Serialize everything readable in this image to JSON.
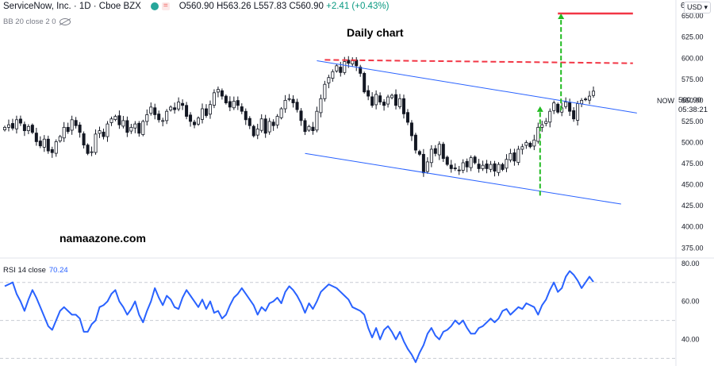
{
  "header": {
    "symbol": "ServiceNow, Inc. · 1D · Cboe BZX",
    "ohlc": "O560.90 H563.26 L557.83 C560.90",
    "change": "+2.41 (+0.43%)",
    "indicator": "BB 20 close 2 0"
  },
  "annotations": {
    "title": "Daily chart",
    "watermark": "namaazone.com"
  },
  "axis_controls": {
    "currency": "USD",
    "top_label": "6",
    "now_label": "NOW",
    "price_tag": "560.90",
    "countdown": "05:38:21"
  },
  "rsi": {
    "label": "RSI 14 close",
    "value": "70.24"
  },
  "colors": {
    "up": "#089981",
    "down": "#f23645",
    "candle": "#131722",
    "channel": "#2962ff",
    "resistance": "#f23645",
    "arrow": "#22bb22",
    "rsi_line": "#2962ff"
  },
  "chart_data": [
    {
      "type": "candlestick",
      "title": "Daily chart",
      "y_ticks": [
        375,
        400,
        425,
        450,
        475,
        500,
        525,
        550,
        575,
        600,
        625,
        650
      ],
      "ylim": [
        363,
        669
      ],
      "x_count": 150,
      "close": [
        518,
        521,
        517,
        527,
        523,
        514,
        519,
        512,
        501,
        496,
        504,
        490,
        488,
        501,
        507,
        518,
        513,
        527,
        520,
        512,
        497,
        487,
        489,
        510,
        514,
        507,
        522,
        528,
        531,
        521,
        526,
        512,
        518,
        522,
        511,
        525,
        533,
        542,
        533,
        527,
        526,
        537,
        542,
        539,
        548,
        544,
        531,
        525,
        521,
        529,
        540,
        532,
        545,
        559,
        563,
        555,
        547,
        542,
        549,
        544,
        537,
        527,
        520,
        508,
        516,
        528,
        511,
        525,
        520,
        531,
        540,
        550,
        552,
        547,
        539,
        526,
        513,
        519,
        514,
        537,
        552,
        569,
        577,
        584,
        591,
        583,
        596,
        594,
        597,
        591,
        582,
        560,
        555,
        544,
        557,
        548,
        544,
        554,
        556,
        544,
        552,
        534,
        524,
        508,
        491,
        486,
        464,
        477,
        492,
        487,
        498,
        481,
        474,
        469,
        469,
        467,
        476,
        471,
        482,
        476,
        469,
        473,
        469,
        474,
        466,
        474,
        468,
        480,
        487,
        478,
        492,
        495,
        500,
        495,
        503,
        518,
        521,
        525,
        537,
        547,
        536,
        541,
        548,
        537,
        528,
        546,
        550,
        551,
        555,
        560.9
      ],
      "channel_upper": {
        "x": [
          79,
          160
        ],
        "y": [
          597,
          535
        ]
      },
      "channel_lower": {
        "x": [
          76,
          156
        ],
        "y": [
          487,
          427
        ]
      },
      "resistance_dashed": {
        "x": [
          81,
          159
        ],
        "y": [
          598,
          594
        ]
      },
      "target_line": {
        "x": [
          140,
          159
        ],
        "y": [
          653,
          653
        ]
      },
      "arrows_up": [
        {
          "x": 135.5,
          "y0": 437,
          "y1": 543
        },
        {
          "x": 140.8,
          "y0": 538,
          "y1": 653
        }
      ]
    },
    {
      "type": "line",
      "name": "RSI 14 close",
      "y_ticks": [
        40,
        60,
        80
      ],
      "ylim": [
        26,
        82
      ],
      "levels": [
        70,
        50,
        30
      ],
      "values": [
        68,
        69,
        70,
        64,
        60,
        55,
        61,
        66,
        62,
        57,
        52,
        47,
        45,
        50,
        55,
        57,
        55,
        53,
        53,
        51,
        44,
        44,
        48,
        50,
        57,
        58,
        60,
        64,
        66,
        60,
        57,
        53,
        56,
        60,
        53,
        49,
        55,
        60,
        67,
        62,
        58,
        63,
        61,
        57,
        56,
        62,
        66,
        63,
        60,
        57,
        61,
        56,
        60,
        54,
        55,
        51,
        53,
        58,
        62,
        64,
        67,
        64,
        61,
        58,
        53,
        57,
        55,
        59,
        60,
        62,
        59,
        65,
        68,
        66,
        63,
        59,
        54,
        59,
        56,
        60,
        65,
        67,
        69,
        68,
        67,
        65,
        63,
        61,
        57,
        56,
        55,
        53,
        46,
        41,
        46,
        40,
        45,
        47,
        44,
        40,
        44,
        39,
        35,
        32,
        28,
        33,
        37,
        43,
        46,
        42,
        40,
        44,
        45,
        47,
        50,
        48,
        50,
        46,
        43,
        43,
        46,
        47,
        49,
        51,
        49,
        51,
        55,
        56,
        53,
        55,
        57,
        56,
        59,
        58,
        57,
        53,
        58,
        61,
        66,
        70,
        65,
        67,
        73,
        76,
        74,
        71,
        67,
        70,
        73,
        70.24
      ]
    }
  ]
}
